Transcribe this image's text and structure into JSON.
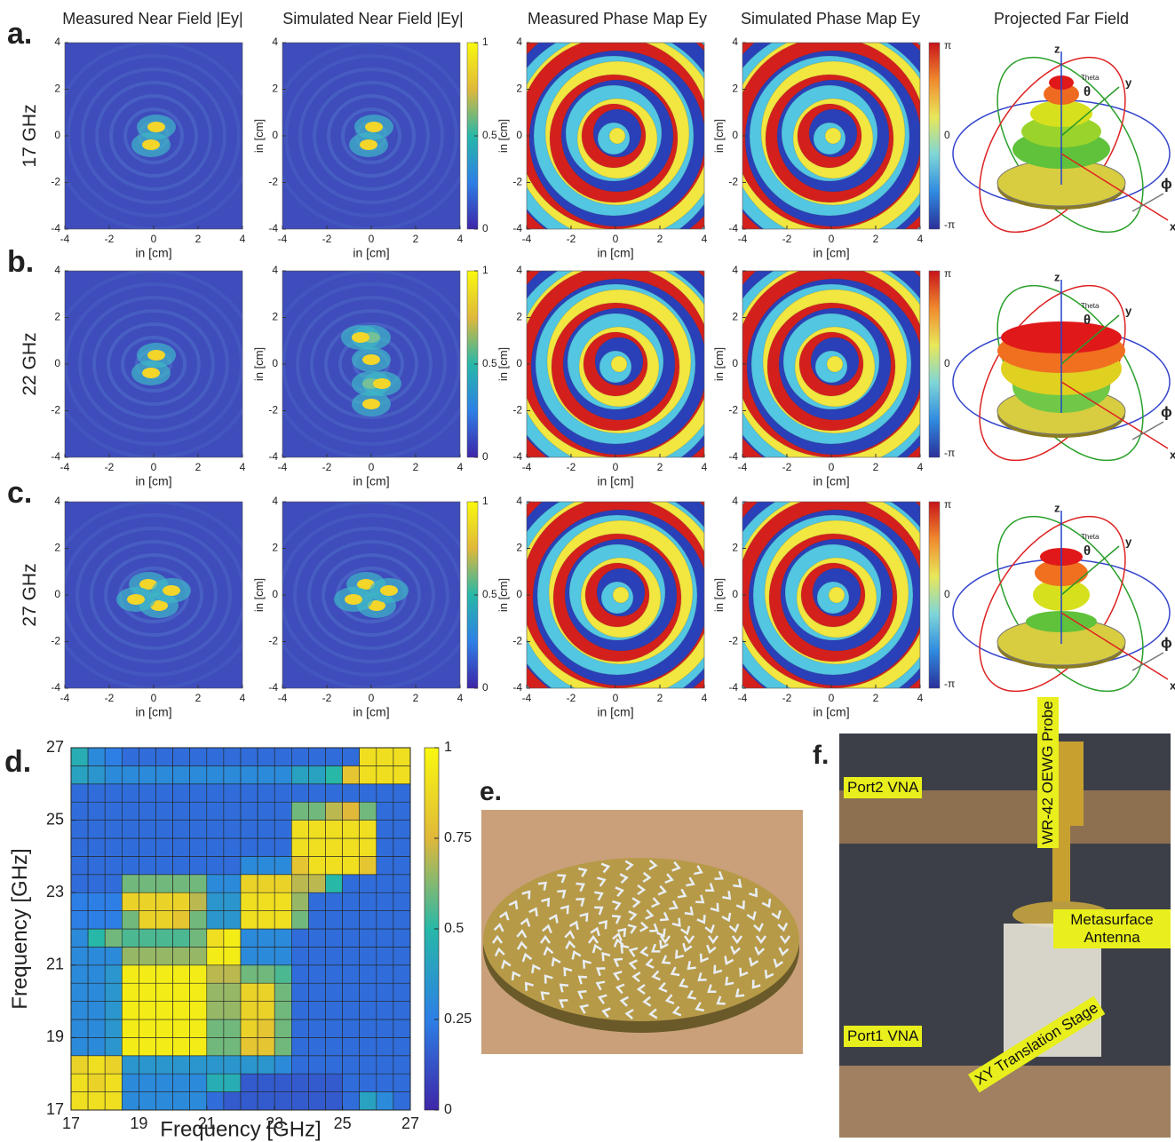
{
  "columns": [
    "Measured Near Field |Ey|",
    "Simulated Near Field |Ey|",
    "Measured Phase Map Ey",
    "Simulated Phase Map Ey",
    "Projected Far Field"
  ],
  "rows": [
    {
      "label": "a.",
      "freq": "17 GHz"
    },
    {
      "label": "b.",
      "freq": "22 GHz"
    },
    {
      "label": "c.",
      "freq": "27 GHz"
    }
  ],
  "map_axes": {
    "ticks": [
      -4,
      -2,
      0,
      2,
      4
    ],
    "label": "in [cm]"
  },
  "field_colorbar": {
    "ticks": [
      0,
      0.5,
      1
    ]
  },
  "phase_colorbar": {
    "labels": [
      "π",
      "0",
      "-π"
    ]
  },
  "far_field_labels": {
    "z": "z",
    "y": "y",
    "x": "x",
    "phi": "ϕ",
    "theta": "θ",
    "theta_word": "Theta"
  },
  "chart_data": {
    "type": "heatmap",
    "label": "d.",
    "xlabel": "Frequency [GHz]",
    "ylabel": "Frequency [GHz]",
    "xlim": [
      17,
      27
    ],
    "ylim": [
      17,
      27
    ],
    "xticks": [
      17,
      19,
      21,
      23,
      25,
      27
    ],
    "yticks": [
      17,
      19,
      21,
      23,
      25,
      27
    ],
    "colorbar_ticks": [
      0,
      0.25,
      0.5,
      0.75,
      1
    ],
    "values": [
      [
        0.9,
        0.9,
        0.9,
        0.3,
        0.3,
        0.3,
        0.3,
        0.3,
        0.2,
        0.15,
        0.15,
        0.15,
        0.15,
        0.15,
        0.15,
        0.15,
        0.2,
        0.4,
        0.3,
        0.2
      ],
      [
        0.9,
        0.85,
        0.9,
        0.3,
        0.3,
        0.3,
        0.3,
        0.3,
        0.45,
        0.45,
        0.15,
        0.15,
        0.15,
        0.15,
        0.15,
        0.15,
        0.2,
        0.2,
        0.2,
        0.2
      ],
      [
        0.85,
        0.9,
        0.85,
        0.35,
        0.35,
        0.35,
        0.35,
        0.35,
        0.35,
        0.35,
        0.35,
        0.35,
        0.3,
        0.2,
        0.2,
        0.2,
        0.2,
        0.2,
        0.2,
        0.2
      ],
      [
        0.3,
        0.3,
        0.35,
        0.95,
        0.95,
        0.95,
        0.95,
        0.95,
        0.6,
        0.6,
        0.8,
        0.8,
        0.6,
        0.2,
        0.2,
        0.2,
        0.2,
        0.2,
        0.2,
        0.2
      ],
      [
        0.3,
        0.3,
        0.35,
        0.95,
        0.95,
        0.95,
        0.95,
        0.95,
        0.6,
        0.6,
        0.85,
        0.8,
        0.6,
        0.2,
        0.2,
        0.2,
        0.2,
        0.2,
        0.2,
        0.2
      ],
      [
        0.3,
        0.3,
        0.35,
        0.95,
        0.95,
        0.95,
        0.95,
        0.95,
        0.65,
        0.65,
        0.85,
        0.85,
        0.6,
        0.2,
        0.2,
        0.2,
        0.2,
        0.2,
        0.2,
        0.2
      ],
      [
        0.3,
        0.3,
        0.35,
        0.95,
        0.95,
        0.95,
        0.95,
        0.95,
        0.65,
        0.65,
        0.85,
        0.85,
        0.6,
        0.2,
        0.2,
        0.2,
        0.2,
        0.2,
        0.2,
        0.2
      ],
      [
        0.3,
        0.3,
        0.35,
        0.95,
        0.95,
        0.95,
        0.95,
        0.95,
        0.7,
        0.7,
        0.6,
        0.6,
        0.55,
        0.2,
        0.2,
        0.2,
        0.2,
        0.2,
        0.2,
        0.2
      ],
      [
        0.3,
        0.3,
        0.3,
        0.65,
        0.65,
        0.65,
        0.65,
        0.65,
        0.95,
        0.95,
        0.3,
        0.3,
        0.3,
        0.2,
        0.2,
        0.2,
        0.2,
        0.2,
        0.2,
        0.2
      ],
      [
        0.3,
        0.5,
        0.6,
        0.55,
        0.55,
        0.55,
        0.55,
        0.6,
        0.9,
        0.95,
        0.3,
        0.3,
        0.3,
        0.2,
        0.2,
        0.2,
        0.2,
        0.2,
        0.2,
        0.2
      ],
      [
        0.25,
        0.25,
        0.25,
        0.6,
        0.85,
        0.85,
        0.8,
        0.6,
        0.35,
        0.35,
        0.9,
        0.9,
        0.9,
        0.6,
        0.2,
        0.2,
        0.2,
        0.2,
        0.2,
        0.2
      ],
      [
        0.25,
        0.25,
        0.25,
        0.85,
        0.85,
        0.85,
        0.85,
        0.7,
        0.35,
        0.35,
        0.9,
        0.9,
        0.9,
        0.65,
        0.2,
        0.2,
        0.2,
        0.2,
        0.2,
        0.2
      ],
      [
        0.2,
        0.2,
        0.2,
        0.6,
        0.6,
        0.6,
        0.6,
        0.6,
        0.3,
        0.3,
        0.85,
        0.85,
        0.85,
        0.7,
        0.7,
        0.5,
        0.2,
        0.2,
        0.2,
        0.2
      ],
      [
        0.2,
        0.2,
        0.2,
        0.2,
        0.2,
        0.2,
        0.2,
        0.2,
        0.2,
        0.2,
        0.3,
        0.3,
        0.3,
        0.8,
        0.9,
        0.9,
        0.9,
        0.8,
        0.2,
        0.2
      ],
      [
        0.2,
        0.2,
        0.2,
        0.2,
        0.2,
        0.2,
        0.2,
        0.2,
        0.2,
        0.2,
        0.2,
        0.2,
        0.2,
        0.9,
        0.9,
        0.9,
        0.9,
        0.9,
        0.2,
        0.2
      ],
      [
        0.2,
        0.2,
        0.2,
        0.2,
        0.2,
        0.2,
        0.2,
        0.2,
        0.2,
        0.2,
        0.2,
        0.2,
        0.2,
        0.9,
        0.9,
        0.9,
        0.9,
        0.9,
        0.2,
        0.2
      ],
      [
        0.2,
        0.2,
        0.2,
        0.2,
        0.2,
        0.2,
        0.2,
        0.2,
        0.2,
        0.2,
        0.2,
        0.2,
        0.2,
        0.6,
        0.6,
        0.7,
        0.75,
        0.6,
        0.2,
        0.2
      ],
      [
        0.2,
        0.2,
        0.2,
        0.2,
        0.2,
        0.2,
        0.2,
        0.2,
        0.2,
        0.2,
        0.2,
        0.2,
        0.2,
        0.2,
        0.2,
        0.2,
        0.2,
        0.2,
        0.2,
        0.2
      ],
      [
        0.4,
        0.35,
        0.3,
        0.3,
        0.3,
        0.3,
        0.3,
        0.3,
        0.3,
        0.3,
        0.3,
        0.3,
        0.3,
        0.4,
        0.4,
        0.5,
        0.8,
        0.9,
        0.9,
        0.9
      ],
      [
        0.45,
        0.3,
        0.25,
        0.2,
        0.2,
        0.2,
        0.2,
        0.2,
        0.2,
        0.2,
        0.2,
        0.2,
        0.2,
        0.2,
        0.2,
        0.2,
        0.2,
        0.9,
        0.9,
        0.9
      ]
    ]
  },
  "panel_e": {
    "label": "e."
  },
  "panel_f": {
    "label": "f.",
    "annotations": [
      "Port2 VNA",
      "WR-42 OEWG Probe",
      "Metasurface Antenna",
      "Port1 VNA",
      "XY Translation Stage"
    ]
  }
}
